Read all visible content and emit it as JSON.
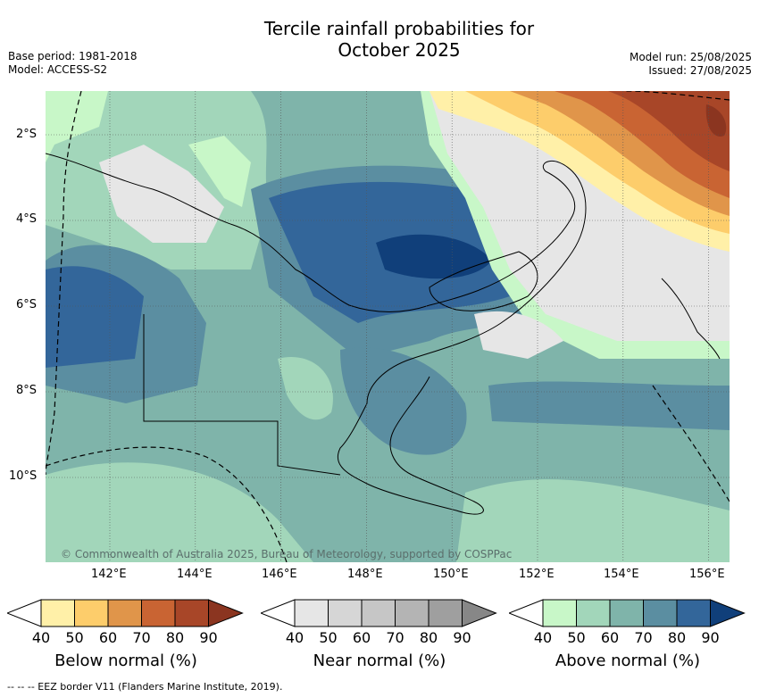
{
  "title_line1": "Tercile rainfall probabilities for",
  "title_line2": "October 2025",
  "meta_left": {
    "base_period": "Base period: 1981-2018",
    "model": "Model: ACCESS-S2"
  },
  "meta_right": {
    "model_run": "Model run: 25/08/2025",
    "issued": "Issued: 27/08/2025"
  },
  "lat_labels": [
    "2°S",
    "4°S",
    "6°S",
    "8°S",
    "10°S"
  ],
  "lon_labels": [
    "142°E",
    "144°E",
    "146°E",
    "148°E",
    "150°E",
    "152°E",
    "154°E",
    "156°E"
  ],
  "copyright": "© Commonwealth of Australia 2025, Bureau of Meteorology, supported by COSPPac",
  "colorbars": [
    {
      "title": "Below normal (%)",
      "ticks": [
        "40",
        "50",
        "60",
        "70",
        "80",
        "90"
      ],
      "colors": [
        "#fff0a8",
        "#fdcd6b",
        "#e0954a",
        "#c96433",
        "#a84628",
        "#8b3520"
      ]
    },
    {
      "title": "Near normal (%)",
      "ticks": [
        "40",
        "50",
        "60",
        "70",
        "80",
        "90"
      ],
      "colors": [
        "#e6e6e6",
        "#d6d6d6",
        "#c6c6c6",
        "#b4b4b4",
        "#9f9f9f",
        "#878787"
      ]
    },
    {
      "title": "Above normal (%)",
      "ticks": [
        "40",
        "50",
        "60",
        "70",
        "80",
        "90"
      ],
      "colors": [
        "#c8f7c8",
        "#a2d6ba",
        "#7fb4aa",
        "#5b8ea1",
        "#33669a",
        "#103f7a"
      ]
    }
  ],
  "footnote": "--  --  -- EEZ border V11 (Flanders Marine Institute, 2019)."
}
